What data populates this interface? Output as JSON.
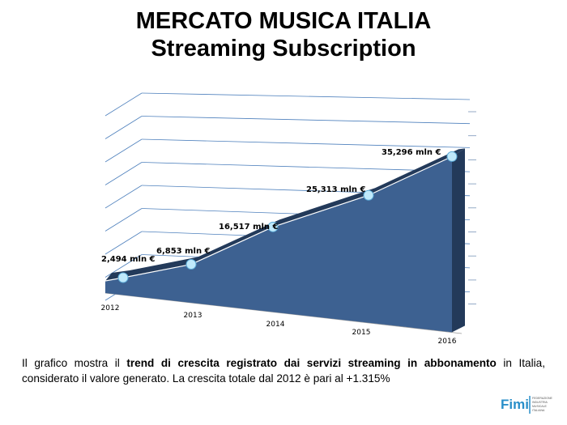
{
  "title": "MERCATO MUSICA ITALIA",
  "subtitle": "Streaming Subscription",
  "caption": {
    "part1": "Il grafico mostra il ",
    "bold": "trend di crescita registrato dai servizi streaming in abbonamento",
    "part2": " in Italia, considerato il valore generato. La crescita totale dal 2012 è pari al +1.315%"
  },
  "logo": {
    "text": "FIMI",
    "subtext": "FEDERAZIONE INDUSTRIA MUSICALE ITALIANA"
  },
  "chart_data": {
    "type": "area",
    "style": "3d",
    "categories": [
      "2012",
      "2013",
      "2014",
      "2015",
      "2016"
    ],
    "values": [
      2.494,
      6.853,
      16.517,
      25.313,
      35.296
    ],
    "labels": [
      "2,494 mln €",
      "6,853 mln €",
      "16,517 mln €",
      "25,313 mln €",
      "35,296 mln €"
    ],
    "grid": true,
    "colors": {
      "area": "#3d6191",
      "side": "#233a5a",
      "marker": "#bfe9fb",
      "grid": "#4f81bd"
    }
  }
}
